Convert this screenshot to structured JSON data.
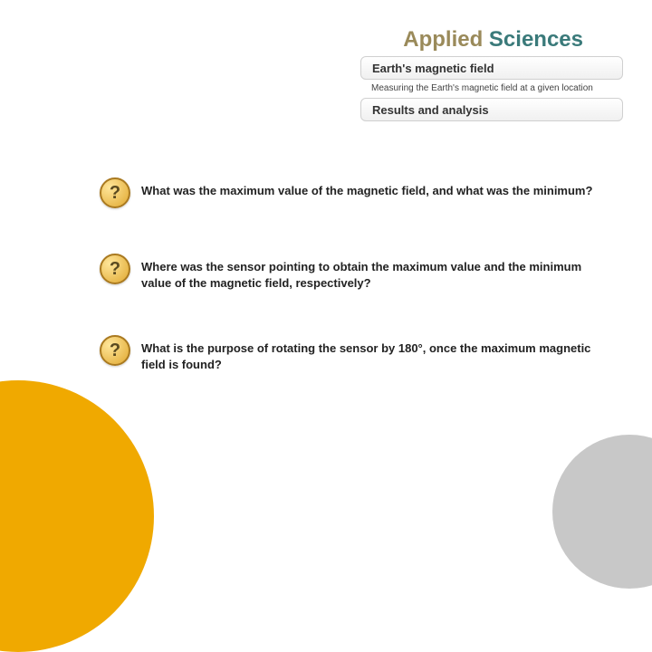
{
  "brand": {
    "word1": "Applied",
    "word2": "Sciences"
  },
  "header": {
    "topic": "Earth's magnetic field",
    "subtitle": "Measuring the Earth's magnetic field at a given location",
    "section": "Results and analysis"
  },
  "questions": [
    {
      "text": "What was the maximum value of the magnetic field, and what was the minimum?"
    },
    {
      "text": "Where was the sensor pointing to obtain the maximum value and the minimum value of the magnetic field, respectively?"
    },
    {
      "text": "What is the purpose of rotating the sensor by 180°, once the maximum magnetic field is found?"
    }
  ],
  "colors": {
    "brand_primary": "#3a7a7a",
    "brand_accent": "#9a8a5a",
    "circle_orange": "#f0a900",
    "circle_gray": "#c8c8c8",
    "icon_bg_light": "#ffe69a",
    "icon_bg_dark": "#e0a830",
    "icon_border": "#aa7a20"
  }
}
